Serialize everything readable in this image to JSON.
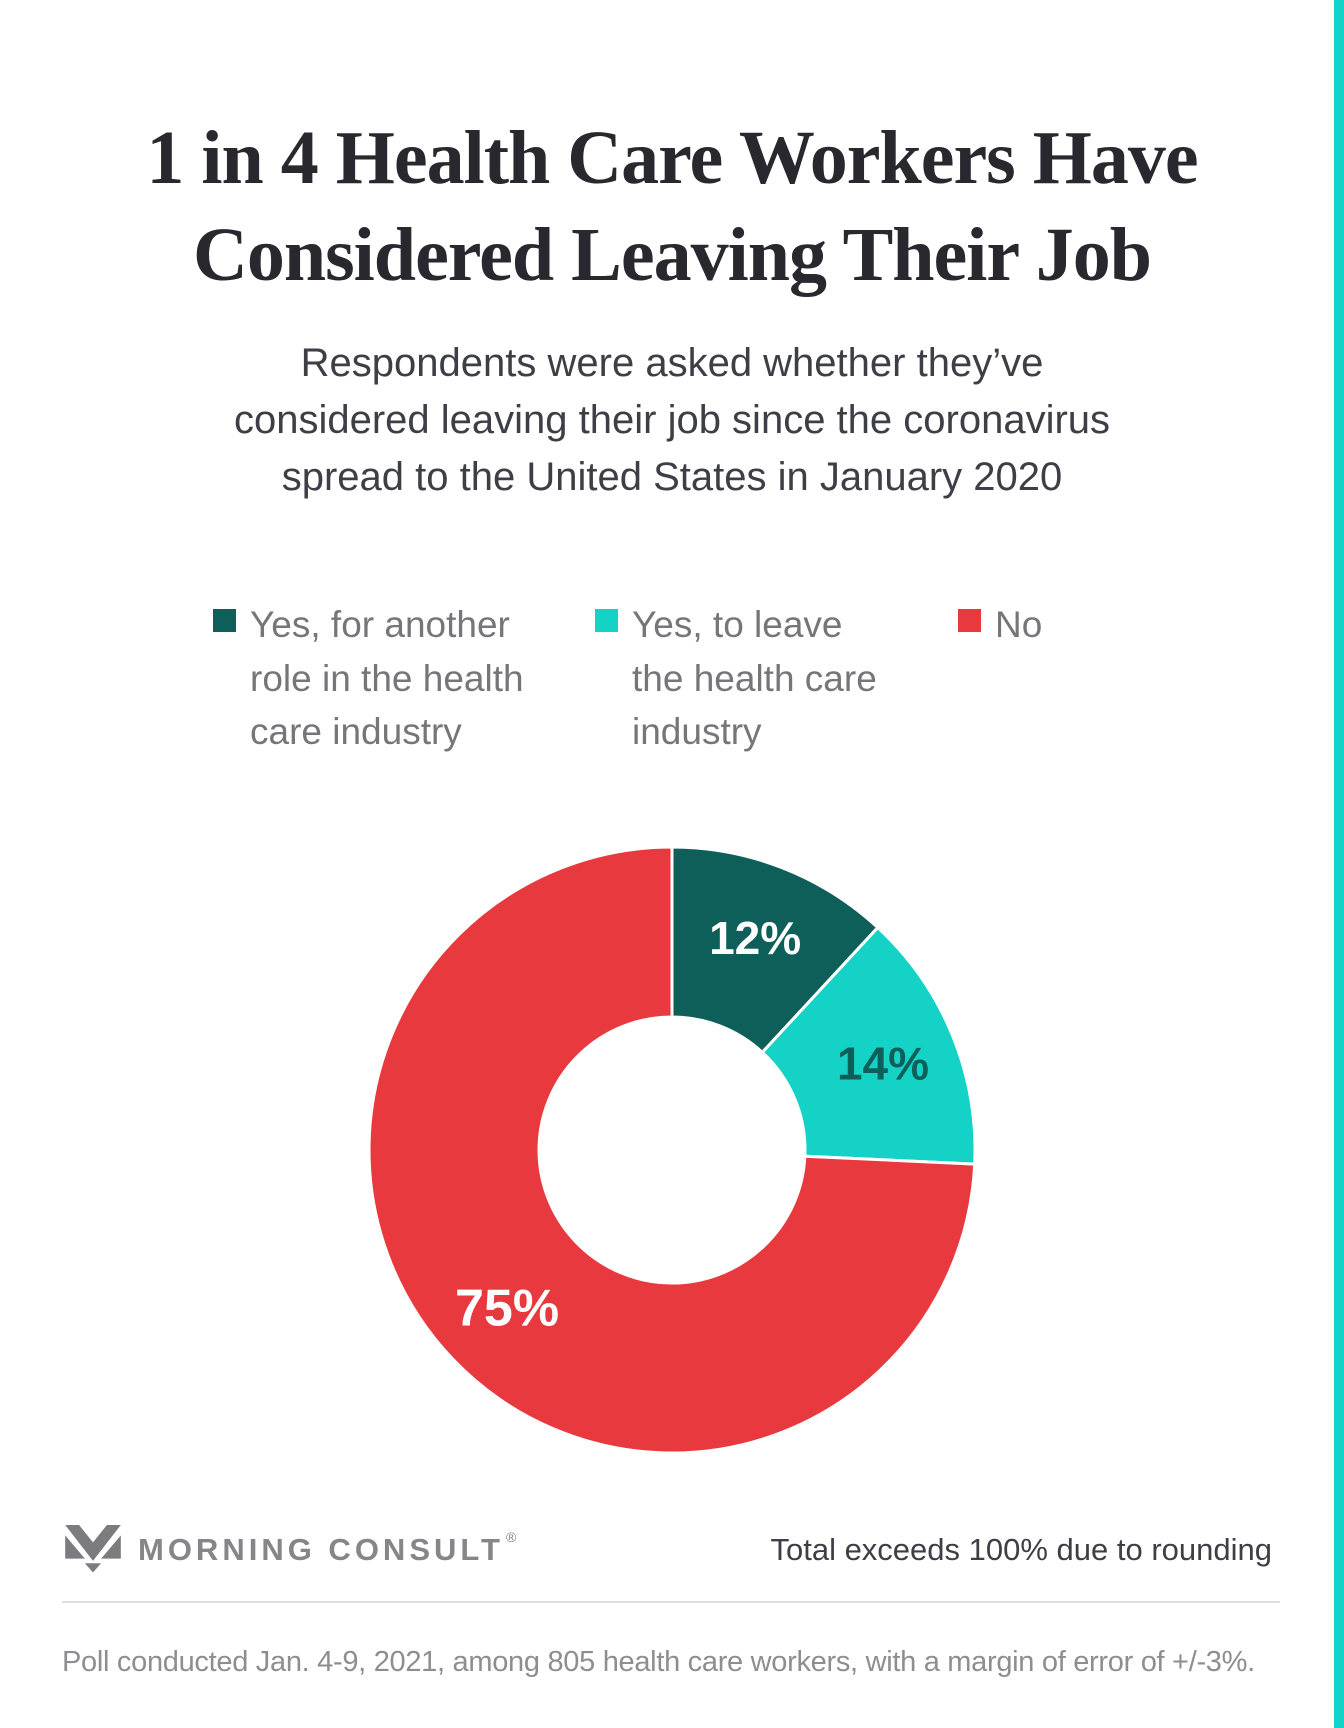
{
  "page": {
    "title_lines": [
      "1 in 4 Health Care Workers Have",
      "Considered Leaving Their Job"
    ],
    "subtitle_lines": [
      "Respondents were asked whether they’ve",
      "considered leaving their job since the coronavirus",
      "spread to the United States in January 2020"
    ],
    "accent_strip_color": "#12d3c7"
  },
  "legend": {
    "items": [
      {
        "color": "#0e5f5a",
        "lines": [
          "Yes, for another",
          "role in the health",
          "care industry"
        ]
      },
      {
        "color": "#14d2c6",
        "lines": [
          "Yes, to leave",
          "the health care",
          "industry"
        ]
      },
      {
        "color": "#e8393f",
        "lines": [
          "No"
        ]
      }
    ]
  },
  "chart_data": {
    "type": "pie",
    "variant": "donut",
    "categories": [
      "Yes, for another role in the health care industry",
      "Yes, to leave the health care industry",
      "No"
    ],
    "values": [
      12,
      14,
      75
    ],
    "value_labels": [
      "12%",
      "14%",
      "75%"
    ],
    "colors": [
      "#0e5f5a",
      "#14d2c6",
      "#e8393f"
    ],
    "label_colors": [
      "#ffffff",
      "#0e5f5a",
      "#ffffff"
    ],
    "label_font_sizes": [
      46,
      46,
      52
    ],
    "start_angle": "12 o'clock",
    "direction": "clockwise",
    "slice_gap_color": "#ffffff",
    "legend_position": "top",
    "note": "Total exceeds 100% due to rounding"
  },
  "footer": {
    "brand": "MORNING CONSULT",
    "registered_mark": "®",
    "rounding_note": "Total exceeds 100% due to rounding",
    "footnote": "Poll conducted Jan. 4-9, 2021, among 805 health care workers, with a margin of error of +/-3%."
  }
}
